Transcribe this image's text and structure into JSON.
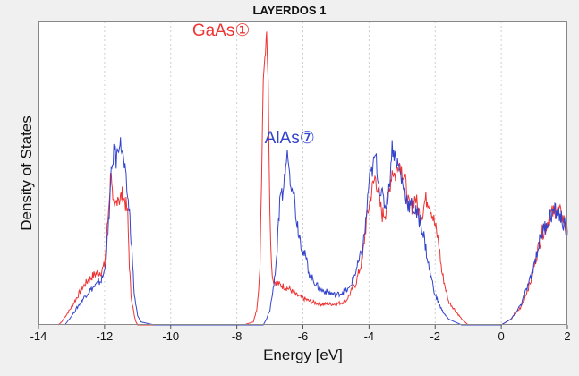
{
  "window": {
    "title": "LAYERDOS 1"
  },
  "chart_data": {
    "type": "line",
    "title": "LAYERDOS 1",
    "xlabel": "Energy [eV]",
    "ylabel": "Density of States",
    "xlim": [
      -14,
      2
    ],
    "ylim": [
      0,
      100
    ],
    "xticks": [
      -14,
      -12,
      -10,
      -8,
      -6,
      -4,
      -2,
      0,
      2
    ],
    "grid": true,
    "series": [
      {
        "name": "GaAs①",
        "color": "#ee3333",
        "x": [
          -13.4,
          -13.3,
          -13.0,
          -12.7,
          -12.5,
          -12.3,
          -12.1,
          -12.0,
          -11.9,
          -11.8,
          -11.75,
          -11.7,
          -11.6,
          -11.55,
          -11.5,
          -11.45,
          -11.4,
          -11.35,
          -11.3,
          -11.25,
          -11.2,
          -11.1,
          -11.05,
          -11.0,
          -10.9,
          -10.5,
          -7.8,
          -7.5,
          -7.4,
          -7.3,
          -7.25,
          -7.2,
          -7.15,
          -7.1,
          -7.05,
          -7.0,
          -6.95,
          -6.9,
          -6.8,
          -6.6,
          -6.4,
          -6.2,
          -6.0,
          -5.8,
          -5.5,
          -5.0,
          -4.7,
          -4.4,
          -4.2,
          -4.1,
          -4.0,
          -3.9,
          -3.8,
          -3.7,
          -3.6,
          -3.5,
          -3.4,
          -3.3,
          -3.2,
          -3.1,
          -3.0,
          -2.9,
          -2.8,
          -2.7,
          -2.6,
          -2.5,
          -2.4,
          -2.3,
          -2.2,
          -2.1,
          -2.0,
          -1.9,
          -1.8,
          -1.6,
          -1.4,
          -1.2,
          -1.0,
          -0.6,
          -0.3,
          0.0,
          0.3,
          0.6,
          0.9,
          1.2,
          1.5,
          1.6,
          1.7,
          1.8,
          1.9,
          1.95,
          2.0
        ],
        "y": [
          0,
          1,
          6,
          12,
          15,
          17,
          18,
          20,
          35,
          53,
          40,
          38,
          44,
          42,
          43,
          44,
          42,
          40,
          37,
          20,
          10,
          3,
          1,
          0,
          0,
          0,
          0,
          1,
          5,
          18,
          50,
          85,
          90,
          100,
          80,
          40,
          20,
          15,
          14,
          13,
          12,
          10,
          9,
          8,
          7,
          7,
          8,
          14,
          22,
          33,
          40,
          46,
          50,
          42,
          37,
          38,
          44,
          52,
          50,
          55,
          52,
          48,
          40,
          40,
          43,
          38,
          37,
          42,
          42,
          38,
          33,
          28,
          18,
          8,
          5,
          2,
          0,
          0,
          0,
          0,
          2,
          6,
          15,
          30,
          37,
          38,
          39,
          37,
          35,
          32,
          31
        ],
        "label": {
          "x": -7.6,
          "y": 97
        }
      },
      {
        "name": "AlAs⑦",
        "color": "#3344cc",
        "x": [
          -13.2,
          -13.0,
          -12.7,
          -12.5,
          -12.3,
          -12.1,
          -12.0,
          -11.9,
          -11.8,
          -11.7,
          -11.65,
          -11.6,
          -11.55,
          -11.5,
          -11.45,
          -11.4,
          -11.35,
          -11.3,
          -11.25,
          -11.2,
          -11.15,
          -11.1,
          -11.0,
          -10.9,
          -10.5,
          -7.5,
          -7.3,
          -7.2,
          -7.1,
          -7.0,
          -6.9,
          -6.8,
          -6.7,
          -6.6,
          -6.5,
          -6.45,
          -6.4,
          -6.35,
          -6.3,
          -6.2,
          -6.1,
          -6.0,
          -5.9,
          -5.8,
          -5.5,
          -5.0,
          -4.6,
          -4.4,
          -4.2,
          -4.1,
          -4.0,
          -3.9,
          -3.8,
          -3.7,
          -3.6,
          -3.5,
          -3.4,
          -3.3,
          -3.2,
          -3.1,
          -3.0,
          -2.9,
          -2.8,
          -2.7,
          -2.6,
          -2.5,
          -2.4,
          -2.3,
          -2.2,
          -2.0,
          -1.8,
          -1.6,
          -1.4,
          -1.2,
          -1.0,
          -0.6,
          -0.3,
          0.0,
          0.3,
          0.6,
          0.9,
          1.2,
          1.5,
          1.6,
          1.7,
          1.8,
          1.9,
          1.95,
          2.0
        ],
        "y": [
          0,
          3,
          8,
          11,
          13,
          15,
          18,
          30,
          50,
          60,
          55,
          59,
          62,
          60,
          57,
          53,
          48,
          43,
          38,
          30,
          20,
          10,
          3,
          1,
          0,
          0,
          0,
          0,
          2,
          5,
          12,
          22,
          40,
          45,
          55,
          58,
          50,
          48,
          47,
          36,
          30,
          25,
          22,
          17,
          12,
          10,
          12,
          18,
          25,
          34,
          48,
          52,
          57,
          47,
          43,
          40,
          45,
          60,
          56,
          53,
          48,
          44,
          40,
          40,
          38,
          36,
          33,
          27,
          20,
          10,
          5,
          2,
          1,
          0,
          0,
          0,
          0,
          0,
          2,
          7,
          16,
          30,
          37,
          38,
          38,
          36,
          34,
          31,
          30
        ],
        "label": {
          "x": -6.4,
          "y": 61
        }
      }
    ]
  }
}
